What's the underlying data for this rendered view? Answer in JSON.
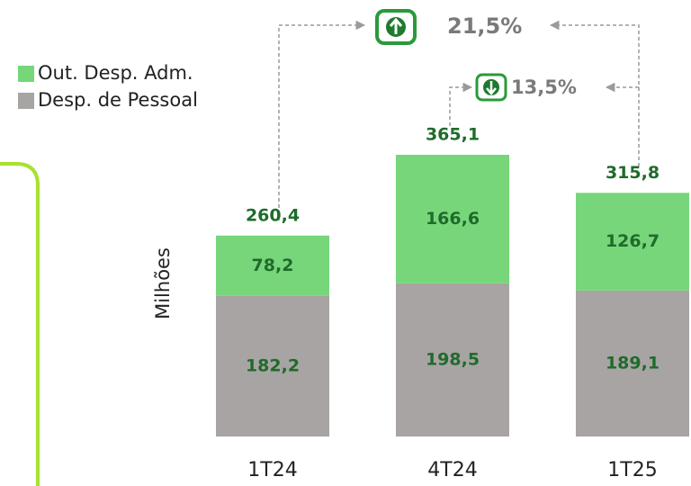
{
  "chart_data": {
    "type": "stacked_bar",
    "y_label": "Milhões",
    "categories": [
      "1T24",
      "4T24",
      "1T25"
    ],
    "series": [
      {
        "name": "Desp. de Pessoal",
        "color": "#a8a4a3",
        "values": [
          182.2,
          198.5,
          189.1
        ],
        "value_labels": [
          "182,2",
          "198,5",
          "189,1"
        ]
      },
      {
        "name": "Out. Desp. Adm.",
        "color": "#77d67a",
        "values": [
          78.2,
          166.6,
          126.7
        ],
        "value_labels": [
          "78,2",
          "166,6",
          "126,7"
        ]
      }
    ],
    "totals": [
      260.4,
      365.1,
      315.8
    ],
    "total_labels": [
      "260,4",
      "365,1",
      "315,8"
    ],
    "annotations": [
      {
        "value": 21.5,
        "label": "21,5%"
      },
      {
        "value": 13.5,
        "label": "13,5%"
      }
    ],
    "legend": [
      "Out. Desp. Adm.",
      "Desp. de Pessoal"
    ]
  }
}
